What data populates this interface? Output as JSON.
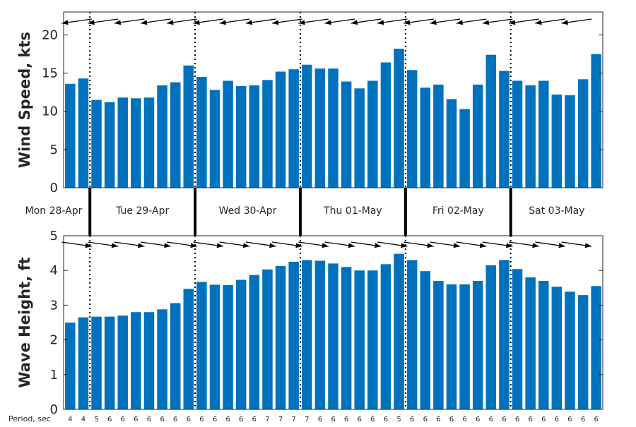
{
  "chart_data": [
    {
      "type": "bar",
      "panel": "wind",
      "ylabel": "Wind Speed, kts",
      "ylim": [
        0,
        23
      ],
      "yticks": [
        0,
        5,
        10,
        15,
        20
      ],
      "color": "#0072bd",
      "values": [
        13.6,
        14.3,
        11.5,
        11.2,
        11.8,
        11.7,
        11.8,
        13.4,
        13.8,
        16.0,
        14.5,
        12.8,
        14.0,
        13.3,
        13.4,
        14.1,
        15.2,
        15.5,
        16.1,
        15.6,
        15.6,
        13.9,
        13.0,
        14.0,
        16.4,
        18.2,
        15.4,
        13.1,
        13.5,
        11.6,
        10.3,
        13.5,
        17.4,
        15.3,
        14.0,
        13.4,
        14.0,
        12.2,
        12.1,
        14.2,
        17.5
      ],
      "direction_arrows": "from east-northeast (pointing left)"
    },
    {
      "type": "bar",
      "panel": "wave",
      "ylabel": "Wave Height, ft",
      "ylim": [
        0,
        5
      ],
      "yticks": [
        0,
        1,
        2,
        3,
        4,
        5
      ],
      "color": "#0072bd",
      "values": [
        2.5,
        2.65,
        2.67,
        2.67,
        2.7,
        2.8,
        2.8,
        2.88,
        3.06,
        3.47,
        3.67,
        3.59,
        3.58,
        3.73,
        3.87,
        4.03,
        4.13,
        4.25,
        4.3,
        4.28,
        4.2,
        4.1,
        4.0,
        4.0,
        4.18,
        4.48,
        4.3,
        3.98,
        3.7,
        3.6,
        3.6,
        3.7,
        4.15,
        4.3,
        4.04,
        3.8,
        3.7,
        3.53,
        3.39,
        3.29,
        3.55
      ],
      "direction_arrows": "toward east (pointing right)"
    }
  ],
  "days": [
    "Mon 28-Apr",
    "Tue 29-Apr",
    "Wed 30-Apr",
    "Thu 01-May",
    "Fri 02-May",
    "Sat 03-May"
  ],
  "day_boundaries": [
    2,
    10,
    18,
    26,
    34
  ],
  "period_label": "Period, sec",
  "periods": [
    4,
    4,
    5,
    6,
    6,
    6,
    6,
    6,
    6,
    6,
    6,
    6,
    6,
    6,
    6,
    7,
    7,
    7,
    7,
    6,
    6,
    6,
    6,
    6,
    6,
    5,
    6,
    6,
    6,
    6,
    6,
    6,
    6,
    6,
    6,
    6,
    6,
    6,
    6,
    6,
    6
  ]
}
